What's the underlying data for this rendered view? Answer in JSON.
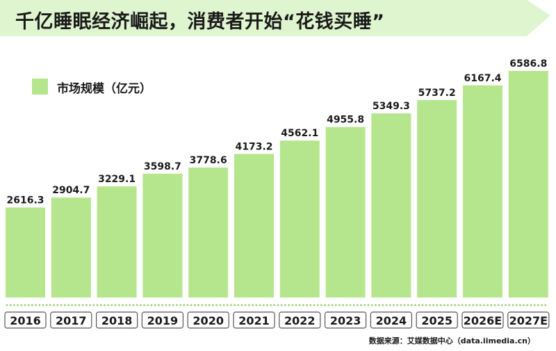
{
  "title": "千亿睡眠经济崛起，消费者开始“花钱买睡”",
  "source": "数据来源：艾媒数据中心（data.iimedia.cn）",
  "colors": {
    "bar": "#b5e68e",
    "banner": "#dff5d0",
    "dots": "#8fd06a",
    "year_box_border": "#555555"
  },
  "chart_data": {
    "type": "bar",
    "title": "千亿睡眠经济崛起，消费者开始“花钱买睡”",
    "categories": [
      "2016",
      "2017",
      "2018",
      "2019",
      "2020",
      "2021",
      "2022",
      "2023",
      "2024",
      "2025",
      "2026E",
      "2027E"
    ],
    "series": [
      {
        "name": "市场规模（亿元）",
        "values": [
          2616.3,
          2904.7,
          3229.1,
          3598.7,
          3778.6,
          4173.2,
          4562.1,
          4955.8,
          5349.3,
          5737.2,
          6167.4,
          6586.8
        ]
      }
    ],
    "value_labels": [
      "2616.3",
      "2904.7",
      "3229.1",
      "3598.7",
      "3778.6",
      "4173.2",
      "4562.1",
      "4955.8",
      "5349.3",
      "5737.2",
      "6167.4",
      "6586.8"
    ],
    "xlabel": "",
    "ylabel": "",
    "grid": false,
    "legend_position": "top-left"
  }
}
